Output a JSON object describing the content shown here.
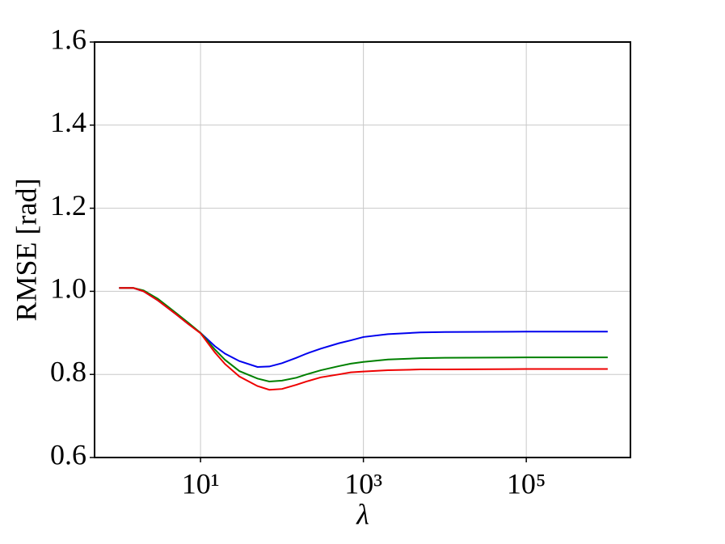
{
  "chart_data": {
    "type": "line",
    "x_label": "λ",
    "y_label": "RMSE [rad]",
    "xscale": "log",
    "x": [
      1,
      1.5,
      2,
      3,
      5,
      7,
      10,
      15,
      20,
      30,
      50,
      70,
      100,
      150,
      200,
      300,
      500,
      700,
      1000,
      2000,
      5000,
      10000,
      100000,
      1000000
    ],
    "series": [
      {
        "color": "#0000ee",
        "values": [
          1.008,
          1.008,
          1.0,
          0.978,
          0.945,
          0.922,
          0.9,
          0.868,
          0.85,
          0.832,
          0.818,
          0.819,
          0.827,
          0.84,
          0.85,
          0.862,
          0.875,
          0.882,
          0.89,
          0.897,
          0.901,
          0.902,
          0.903,
          0.903
        ]
      },
      {
        "color": "#008000",
        "values": [
          1.008,
          1.008,
          1.002,
          0.982,
          0.948,
          0.925,
          0.9,
          0.86,
          0.835,
          0.808,
          0.79,
          0.783,
          0.785,
          0.792,
          0.8,
          0.81,
          0.82,
          0.826,
          0.83,
          0.836,
          0.839,
          0.84,
          0.841,
          0.841
        ]
      },
      {
        "color": "#ee0000",
        "values": [
          1.008,
          1.008,
          1.0,
          0.978,
          0.945,
          0.922,
          0.899,
          0.853,
          0.825,
          0.795,
          0.772,
          0.763,
          0.765,
          0.775,
          0.783,
          0.793,
          0.8,
          0.805,
          0.807,
          0.81,
          0.812,
          0.812,
          0.813,
          0.813
        ]
      }
    ],
    "xlim": [
      0.5,
      1900000
    ],
    "xticks": [
      {
        "value": 10,
        "label": "10¹"
      },
      {
        "value": 1000,
        "label": "10³"
      },
      {
        "value": 100000,
        "label": "10⁵"
      }
    ],
    "ylim": [
      0.6,
      1.6
    ],
    "yticks": [
      0.6,
      0.8,
      {
        "value": 1,
        "label": "1.0"
      },
      1.2,
      1.4,
      1.6
    ],
    "grid": true
  }
}
